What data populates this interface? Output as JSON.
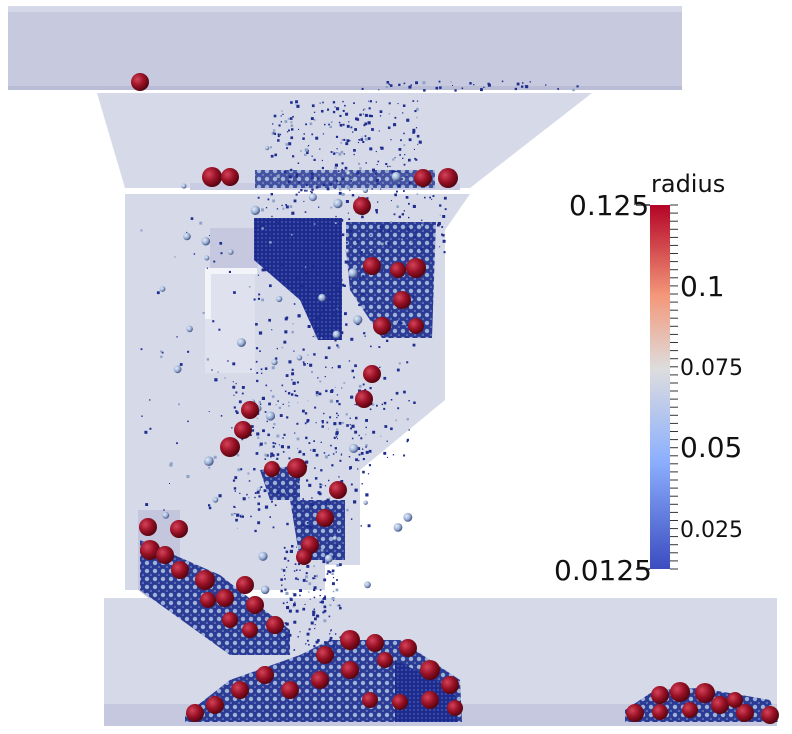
{
  "colorbar": {
    "title": "radius",
    "min_label": "0.125",
    "max_label": "0.0125",
    "ticks": [
      {
        "label": "0.125",
        "value": 0.125
      },
      {
        "label": "0.1",
        "value": 0.1
      },
      {
        "label": "0.075",
        "value": 0.075
      },
      {
        "label": "0.05",
        "value": 0.05
      },
      {
        "label": "0.025",
        "value": 0.025
      },
      {
        "label": "0.0125",
        "value": 0.0125
      }
    ],
    "range": [
      0.0125,
      0.125
    ],
    "colormap": [
      "#3b4cc0",
      "#8db0fe",
      "#dddddd",
      "#f4987a",
      "#b40426"
    ]
  },
  "colors": {
    "geometry": "#d6d9e8",
    "geometry_dark": "#c5c8df",
    "small_particles": "#1c2a8c",
    "large_particles": "#8e0f20",
    "medium_particles": "#a9bcd8"
  }
}
